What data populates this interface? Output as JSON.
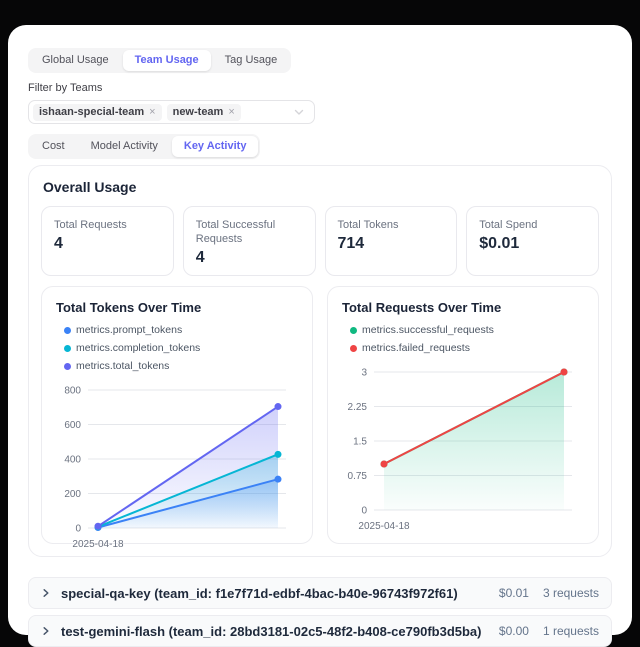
{
  "colors": {
    "accent": "#6366f1",
    "grid": "#e5e7eb",
    "tick_text": "#6b7280"
  },
  "tabs_primary": {
    "items": [
      {
        "label": "Global Usage",
        "active": false
      },
      {
        "label": "Team Usage",
        "active": true
      },
      {
        "label": "Tag Usage",
        "active": false
      }
    ]
  },
  "filter": {
    "label": "Filter by Teams",
    "tags": [
      {
        "label": "ishaan-special-team",
        "remove": "×"
      },
      {
        "label": "new-team",
        "remove": "×"
      }
    ]
  },
  "tabs_secondary": {
    "items": [
      {
        "label": "Cost",
        "active": false
      },
      {
        "label": "Model Activity",
        "active": false
      },
      {
        "label": "Key Activity",
        "active": true
      }
    ]
  },
  "overall": {
    "title": "Overall Usage",
    "stats": [
      {
        "label": "Total Requests",
        "value": "4"
      },
      {
        "label": "Total Successful Requests",
        "value": "4"
      },
      {
        "label": "Total Tokens",
        "value": "714"
      },
      {
        "label": "Total Spend",
        "value": "$0.01"
      }
    ]
  },
  "chart_data": [
    {
      "type": "area",
      "title": "Total Tokens Over Time",
      "x": [
        "2025-04-18",
        ""
      ],
      "x_tick_labels": [
        "2025-04-18"
      ],
      "series": [
        {
          "name": "metrics.prompt_tokens",
          "color": "#3b82f6",
          "values": [
            3,
            283
          ]
        },
        {
          "name": "metrics.completion_tokens",
          "color": "#06b6d4",
          "values": [
            7,
            427
          ]
        },
        {
          "name": "metrics.total_tokens",
          "color": "#6366f1",
          "values": [
            10,
            704
          ]
        }
      ],
      "ylim": [
        0,
        800
      ],
      "yticks": [
        0,
        200,
        400,
        600,
        800
      ],
      "grid": true,
      "legend_position": "top"
    },
    {
      "type": "area",
      "title": "Total Requests Over Time",
      "x": [
        "2025-04-18",
        ""
      ],
      "x_tick_labels": [
        "2025-04-18"
      ],
      "series": [
        {
          "name": "metrics.successful_requests",
          "color": "#10b981",
          "values": [
            1,
            3
          ]
        },
        {
          "name": "metrics.failed_requests",
          "color": "#ef4444",
          "values": [
            1,
            3
          ],
          "fill": false
        }
      ],
      "ylim": [
        0,
        3
      ],
      "yticks": [
        0,
        0.75,
        1.5,
        2.25,
        3
      ],
      "grid": true,
      "legend_position": "top"
    }
  ],
  "keys": [
    {
      "name": "special-qa-key (team_id: f1e7f71d-edbf-4bac-b40e-96743f972f61)",
      "spend": "$0.01",
      "requests": "3 requests"
    },
    {
      "name": "test-gemini-flash (team_id: 28bd3181-02c5-48f2-b408-ce790fb3d5ba)",
      "spend": "$0.00",
      "requests": "1 requests"
    }
  ]
}
